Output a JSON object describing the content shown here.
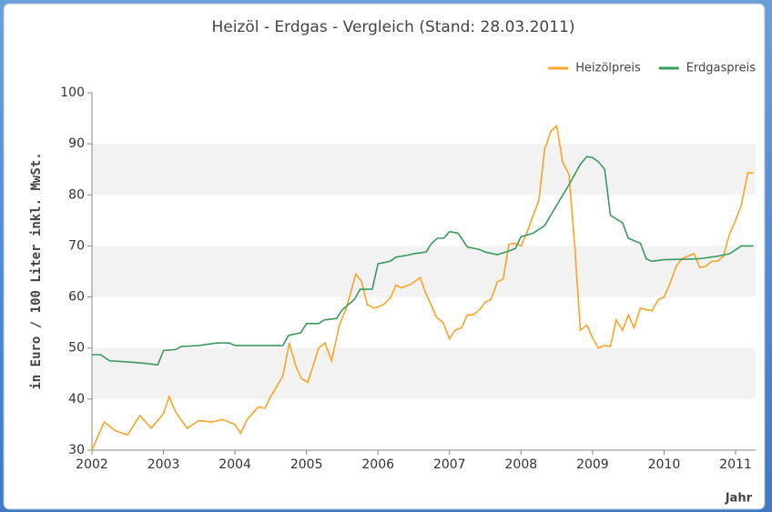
{
  "chart_data": {
    "type": "line",
    "title": "Heizöl - Erdgas - Vergleich (Stand: 28.03.2011)",
    "y_label": "in Euro / 100 Liter inkl. MwSt.",
    "x_label": "Jahr",
    "xlim": [
      2002,
      2011.28
    ],
    "xticks": [
      2002,
      2003,
      2004,
      2005,
      2006,
      2007,
      2008,
      2009,
      2010,
      2011
    ],
    "ylim": [
      30,
      100
    ],
    "yticks": [
      30,
      40,
      50,
      60,
      70,
      80,
      90,
      100
    ],
    "alternating_bands": true,
    "legend": "top-right",
    "series": [
      {
        "name": "Heizölpreis",
        "color": "#f7a428",
        "x": [
          2002.0,
          2002.17,
          2002.33,
          2002.5,
          2002.67,
          2002.83,
          2003.0,
          2003.08,
          2003.17,
          2003.33,
          2003.5,
          2003.67,
          2003.83,
          2004.0,
          2004.08,
          2004.17,
          2004.33,
          2004.42,
          2004.5,
          2004.67,
          2004.76,
          2004.85,
          2004.93,
          2005.02,
          2005.17,
          2005.26,
          2005.35,
          2005.46,
          2005.56,
          2005.69,
          2005.77,
          2005.85,
          2005.95,
          2006.08,
          2006.18,
          2006.25,
          2006.33,
          2006.46,
          2006.59,
          2006.66,
          2006.74,
          2006.82,
          2006.91,
          2007.0,
          2007.08,
          2007.17,
          2007.25,
          2007.33,
          2007.42,
          2007.5,
          2007.58,
          2007.67,
          2007.75,
          2007.83,
          2007.92,
          2008.0,
          2008.08,
          2008.17,
          2008.25,
          2008.33,
          2008.42,
          2008.5,
          2008.58,
          2008.67,
          2008.75,
          2008.83,
          2008.92,
          2009.0,
          2009.08,
          2009.17,
          2009.25,
          2009.33,
          2009.42,
          2009.5,
          2009.58,
          2009.67,
          2009.75,
          2009.83,
          2009.92,
          2010.0,
          2010.08,
          2010.17,
          2010.25,
          2010.33,
          2010.42,
          2010.5,
          2010.58,
          2010.67,
          2010.75,
          2010.83,
          2010.92,
          2011.0,
          2011.08,
          2011.17,
          2011.25
        ],
        "values": [
          30.0,
          35.5,
          33.8,
          33.0,
          36.8,
          34.3,
          37.2,
          40.5,
          37.5,
          34.3,
          35.8,
          35.5,
          36.0,
          35.0,
          33.3,
          36.0,
          38.5,
          38.2,
          40.5,
          44.5,
          51.0,
          46.5,
          44.0,
          43.3,
          50.0,
          51.0,
          47.5,
          54.5,
          58.0,
          64.5,
          63.0,
          58.5,
          57.8,
          58.5,
          60.0,
          62.3,
          61.8,
          62.5,
          63.8,
          61.0,
          58.5,
          56.0,
          55.0,
          51.8,
          53.5,
          54.0,
          56.5,
          56.5,
          57.5,
          59.0,
          59.5,
          63.0,
          63.5,
          70.3,
          70.5,
          70.0,
          72.5,
          76.0,
          79.0,
          89.0,
          92.5,
          93.5,
          86.5,
          84.0,
          70.0,
          53.5,
          54.5,
          52.0,
          50.0,
          50.5,
          50.3,
          55.5,
          53.5,
          56.5,
          54.0,
          57.8,
          57.5,
          57.3,
          59.5,
          60.0,
          62.5,
          66.0,
          67.5,
          68.0,
          68.5,
          65.8,
          66.0,
          67.0,
          67.0,
          68.0,
          72.5,
          75.0,
          78.0,
          84.3,
          84.3
        ]
      },
      {
        "name": "Erdgaspreis",
        "color": "#3a9a5f",
        "x": [
          2002.0,
          2002.12,
          2002.25,
          2002.5,
          2002.75,
          2002.92,
          2003.0,
          2003.17,
          2003.25,
          2003.5,
          2003.75,
          2003.92,
          2004.0,
          2004.5,
          2004.67,
          2004.75,
          2004.92,
          2005.0,
          2005.17,
          2005.25,
          2005.42,
          2005.5,
          2005.67,
          2005.75,
          2005.92,
          2006.0,
          2006.17,
          2006.25,
          2006.42,
          2006.5,
          2006.67,
          2006.75,
          2006.83,
          2006.92,
          2007.0,
          2007.12,
          2007.25,
          2007.42,
          2007.5,
          2007.67,
          2007.83,
          2007.92,
          2008.0,
          2008.17,
          2008.33,
          2008.5,
          2008.67,
          2008.83,
          2008.92,
          2009.0,
          2009.08,
          2009.17,
          2009.25,
          2009.42,
          2009.5,
          2009.67,
          2009.75,
          2009.83,
          2010.0,
          2010.5,
          2010.75,
          2010.92,
          2011.08,
          2011.25
        ],
        "values": [
          48.7,
          48.7,
          47.5,
          47.3,
          47.0,
          46.7,
          49.5,
          49.7,
          50.3,
          50.5,
          51.0,
          51.0,
          50.5,
          50.5,
          50.5,
          52.5,
          53.0,
          54.8,
          54.8,
          55.5,
          55.8,
          57.5,
          59.5,
          61.5,
          61.5,
          66.5,
          67.0,
          67.8,
          68.2,
          68.5,
          68.8,
          70.5,
          71.5,
          71.5,
          72.8,
          72.5,
          69.8,
          69.3,
          68.8,
          68.3,
          69.0,
          69.5,
          71.8,
          72.5,
          74.0,
          78.0,
          82.0,
          86.0,
          87.5,
          87.3,
          86.5,
          85.0,
          76.0,
          74.5,
          71.5,
          70.5,
          67.5,
          67.0,
          67.3,
          67.5,
          68.0,
          68.5,
          70.0,
          70.0
        ]
      }
    ]
  }
}
